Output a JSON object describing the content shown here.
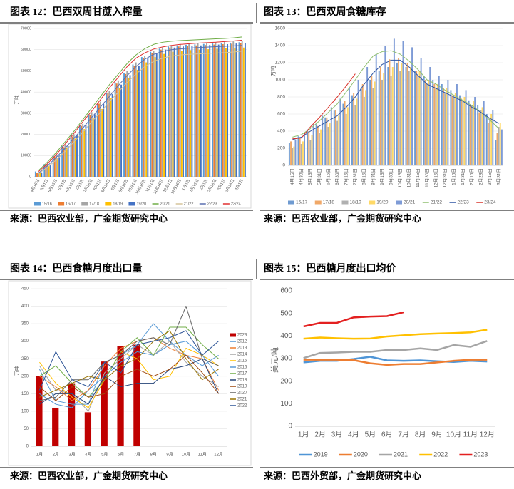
{
  "chart_data": [
    {
      "type": "bar",
      "title": "图表 12：巴西双周甘蔗入榨量",
      "source": "来源：巴西农业部，广金期货研究中心",
      "y_label": "万吨",
      "categories": [
        "4月16日",
        "5月1日",
        "5月16日",
        "6月1日",
        "6月16日",
        "7月1日",
        "7月16日",
        "8月1日",
        "8月16日",
        "9月1日",
        "9月16日",
        "10月1日",
        "10月16日",
        "11月1日",
        "11月16日",
        "12月1日",
        "12月16日",
        "1月1日",
        "1月16日",
        "2月1日",
        "2月16日",
        "3月1日",
        "3月16日",
        "4月1日"
      ],
      "ylim": [
        0,
        70000
      ],
      "yticks": [
        0,
        10000,
        20000,
        30000,
        40000,
        50000,
        60000,
        70000
      ],
      "grid": true,
      "legend": "bottom",
      "series": [
        {
          "name": "15/16",
          "kind": "bar",
          "color": "#5b9bd5",
          "values": [
            2500,
            6000,
            10000,
            14500,
            19500,
            24500,
            29500,
            34500,
            39500,
            44500,
            49000,
            53000,
            56500,
            59000,
            60500,
            61500,
            62000,
            62300,
            62500,
            62700,
            62900,
            63100,
            63300,
            63500
          ]
        },
        {
          "name": "16/17",
          "kind": "bar",
          "color": "#ed7d31",
          "values": [
            2000,
            5500,
            9500,
            14000,
            19000,
            24000,
            29000,
            34500,
            39500,
            44000,
            48500,
            52500,
            56000,
            58500,
            60000,
            61000,
            61500,
            61800,
            62000,
            62200,
            62400,
            62600,
            62800,
            63000
          ]
        },
        {
          "name": "17/18",
          "kind": "bar",
          "color": "#a5a5a5",
          "values": [
            2200,
            6200,
            10500,
            15000,
            20000,
            25000,
            30500,
            35500,
            40500,
            45500,
            50000,
            54000,
            57000,
            59500,
            61000,
            62000,
            62500,
            62800,
            63000,
            63200,
            63400,
            63600,
            63900,
            64200
          ]
        },
        {
          "name": "18/19",
          "kind": "bar",
          "color": "#ffc000",
          "values": [
            1800,
            5000,
            9000,
            13500,
            18000,
            22500,
            27500,
            32000,
            37000,
            42000,
            46500,
            50500,
            54000,
            56500,
            58000,
            59000,
            59500,
            59800,
            60000,
            60200,
            60400,
            60600,
            60800,
            61000
          ]
        },
        {
          "name": "19/20",
          "kind": "bar",
          "color": "#4472c4",
          "values": [
            2100,
            5800,
            10000,
            14500,
            19500,
            24500,
            29500,
            34500,
            39000,
            43500,
            48000,
            52500,
            56000,
            58500,
            60000,
            61000,
            61500,
            61800,
            62000,
            62200,
            62400,
            62600,
            62900,
            63200
          ]
        },
        {
          "name": "20/21",
          "kind": "line",
          "color": "#70ad47",
          "values": [
            3000,
            7000,
            11500,
            16500,
            21500,
            27000,
            32500,
            38000,
            43500,
            48500,
            53500,
            57500,
            60500,
            62500,
            63500,
            64000,
            64300,
            64500,
            64700,
            64900,
            65100,
            65300,
            65600,
            66000
          ]
        },
        {
          "name": "21/22",
          "kind": "line",
          "color": "#d6c49a",
          "values": [
            1500,
            4500,
            8000,
            12000,
            16500,
            21000,
            26000,
            30500,
            35500,
            40000,
            44500,
            48500,
            52000,
            54500,
            56000,
            57000,
            57500,
            57800,
            58000,
            58200,
            58400,
            58600,
            58900,
            59300
          ]
        },
        {
          "name": "22/23",
          "kind": "line",
          "color": "#5a6fb0",
          "values": [
            1800,
            5200,
            9200,
            13500,
            18200,
            23000,
            28000,
            33000,
            38000,
            43000,
            47800,
            52000,
            55500,
            57800,
            59200,
            60000,
            60400,
            60700,
            61000,
            61200,
            61400,
            61600,
            61800,
            62000
          ]
        },
        {
          "name": "23/24",
          "kind": "line",
          "color": "#e03030",
          "values": [
            2500,
            6200,
            10500,
            15500,
            20500,
            26000,
            31000,
            36500,
            42000,
            47000,
            52000,
            56000,
            58500,
            60300,
            61300,
            62000,
            62500,
            62800,
            63100,
            63300,
            63500,
            63800,
            64100,
            64500
          ]
        }
      ]
    },
    {
      "type": "bar",
      "title": "图表 13：巴西双周食糖库存",
      "source": "来源：巴西农业部，广金期货研究中心",
      "y_label": "万吨",
      "categories": [
        "4月15日",
        "4月30日",
        "5月15日",
        "5月31日",
        "6月15日",
        "6月30日",
        "7月15日",
        "7月31日",
        "8月15日",
        "8月31日",
        "9月15日",
        "9月30日",
        "10月15日",
        "10月31日",
        "11月15日",
        "11月30日",
        "12月15日",
        "12月31日",
        "1月15日",
        "1月31日",
        "2月15日",
        "2月28日",
        "3月15日",
        "3月31日"
      ],
      "ylim": [
        0,
        1600
      ],
      "yticks": [
        0,
        200,
        400,
        600,
        800,
        1000,
        1200,
        1400,
        1600
      ],
      "grid": true,
      "legend": "bottom",
      "series": [
        {
          "name": "16/17",
          "kind": "bar",
          "color": "#6f9bd1",
          "values": [
            260,
            340,
            420,
            480,
            560,
            640,
            720,
            820,
            900,
            1000,
            1100,
            1150,
            1200,
            1150,
            1100,
            1050,
            1000,
            950,
            880,
            820,
            760,
            700,
            600,
            300
          ]
        },
        {
          "name": "17/18",
          "kind": "bar",
          "color": "#f0a868",
          "values": [
            280,
            330,
            400,
            460,
            560,
            650,
            750,
            850,
            950,
            1050,
            1150,
            1240,
            1250,
            1200,
            1100,
            1000,
            950,
            900,
            820,
            780,
            700,
            620,
            500,
            380
          ]
        },
        {
          "name": "18/19",
          "kind": "bar",
          "color": "#b0b0b0",
          "values": [
            200,
            250,
            300,
            380,
            450,
            520,
            600,
            700,
            800,
            900,
            1000,
            1050,
            1100,
            1100,
            1050,
            950,
            900,
            850,
            800,
            750,
            700,
            650,
            550,
            450
          ]
        },
        {
          "name": "19/20",
          "kind": "bar",
          "color": "#ffd966",
          "values": [
            220,
            280,
            350,
            420,
            500,
            580,
            680,
            780,
            880,
            980,
            1080,
            1150,
            1200,
            1150,
            1100,
            1000,
            950,
            900,
            850,
            800,
            750,
            680,
            600,
            500
          ]
        },
        {
          "name": "20/21",
          "kind": "bar",
          "color": "#7e9bd6",
          "values": [
            300,
            380,
            480,
            580,
            680,
            780,
            900,
            1000,
            1150,
            1300,
            1400,
            1480,
            1450,
            1380,
            1250,
            1150,
            1050,
            1000,
            950,
            880,
            800,
            750,
            650,
            420
          ]
        },
        {
          "name": "21/22",
          "kind": "line",
          "color": "#8fbf6f",
          "values": [
            330,
            360,
            430,
            520,
            620,
            720,
            860,
            1000,
            1150,
            1280,
            1330,
            1340,
            1300,
            1220,
            1120,
            1000,
            950,
            880,
            820,
            760,
            700,
            620,
            530,
            430
          ]
        },
        {
          "name": "22/23",
          "kind": "line",
          "color": "#2f55a4",
          "values": [
            300,
            330,
            400,
            460,
            520,
            580,
            680,
            800,
            950,
            1080,
            1180,
            1230,
            1230,
            1150,
            1050,
            950,
            900,
            850,
            800,
            750,
            680,
            620,
            550,
            490
          ]
        },
        {
          "name": "23/24",
          "kind": "line",
          "color": "#d9342b",
          "values": [
            310,
            320,
            450,
            560,
            680,
            800,
            930,
            1070,
            null,
            null,
            null,
            null,
            null,
            null,
            null,
            null,
            null,
            null,
            null,
            null,
            null,
            null,
            null,
            null
          ]
        }
      ]
    },
    {
      "type": "bar",
      "title": "图表 14：巴西食糖月度出口量",
      "source": "来源：巴西农业部，广金期货研究中心",
      "y_label": "万吨",
      "categories": [
        "1月",
        "2月",
        "3月",
        "4月",
        "5月",
        "6月",
        "7月",
        "8月",
        "9月",
        "10月",
        "11月",
        "12月"
      ],
      "ylim": [
        0,
        450
      ],
      "yticks": [
        0,
        50,
        100,
        150,
        200,
        250,
        300,
        350,
        400,
        450
      ],
      "grid": true,
      "legend": "right",
      "series": [
        {
          "name": "2023",
          "kind": "bar",
          "color": "#c00000",
          "values": [
            200,
            110,
            180,
            97,
            242,
            287,
            290,
            null,
            null,
            null,
            null,
            null
          ]
        },
        {
          "name": "2012",
          "kind": "line",
          "color": "#4f95d6",
          "values": [
            150,
            120,
            110,
            160,
            200,
            240,
            270,
            260,
            290,
            300,
            260,
            200
          ]
        },
        {
          "name": "2013",
          "kind": "line",
          "color": "#ed7d31",
          "values": [
            200,
            170,
            130,
            160,
            230,
            280,
            300,
            310,
            280,
            260,
            250,
            160
          ]
        },
        {
          "name": "2014",
          "kind": "line",
          "color": "#a5a5a5",
          "values": [
            230,
            160,
            150,
            100,
            210,
            250,
            290,
            260,
            300,
            240,
            200,
            170
          ]
        },
        {
          "name": "2015",
          "kind": "line",
          "color": "#ffc000",
          "values": [
            240,
            180,
            140,
            110,
            190,
            270,
            250,
            190,
            200,
            280,
            260,
            230
          ]
        },
        {
          "name": "2016",
          "kind": "line",
          "color": "#5b9bd5",
          "values": [
            220,
            130,
            120,
            120,
            240,
            260,
            290,
            350,
            300,
            260,
            230,
            260
          ]
        },
        {
          "name": "2017",
          "kind": "line",
          "color": "#70ad47",
          "values": [
            200,
            230,
            180,
            140,
            190,
            270,
            310,
            260,
            340,
            340,
            290,
            250
          ]
        },
        {
          "name": "2018",
          "kind": "line",
          "color": "#264478",
          "values": [
            120,
            150,
            150,
            120,
            200,
            170,
            180,
            180,
            220,
            230,
            250,
            150
          ]
        },
        {
          "name": "2019",
          "kind": "line",
          "color": "#9e480e",
          "values": [
            170,
            130,
            170,
            140,
            150,
            200,
            220,
            200,
            220,
            260,
            210,
            150
          ]
        },
        {
          "name": "2020",
          "kind": "line",
          "color": "#636363",
          "values": [
            130,
            140,
            190,
            190,
            240,
            260,
            300,
            310,
            290,
            400,
            250,
            230
          ]
        },
        {
          "name": "2021",
          "kind": "line",
          "color": "#997300",
          "values": [
            140,
            160,
            180,
            200,
            190,
            230,
            250,
            300,
            330,
            250,
            190,
            220
          ]
        },
        {
          "name": "2022",
          "kind": "line",
          "color": "#2e5597",
          "values": [
            160,
            270,
            190,
            170,
            240,
            210,
            290,
            300,
            310,
            330,
            260,
            300
          ]
        }
      ]
    },
    {
      "type": "line",
      "title": "图表 15：巴西糖月度出口均价",
      "source": "来源：巴西外贸部，广金期货研究中心",
      "y_label": "美元/吨",
      "categories": [
        "1月",
        "2月",
        "3月",
        "4月",
        "5月",
        "6月",
        "7月",
        "8月",
        "9月",
        "10月",
        "11月",
        "12月"
      ],
      "ylim": [
        0,
        600
      ],
      "yticks": [
        0,
        100,
        200,
        300,
        400,
        500,
        600
      ],
      "grid": false,
      "legend": "bottom",
      "series": [
        {
          "name": "2019",
          "color": "#4f95d6",
          "values": [
            283,
            290,
            290,
            298,
            308,
            292,
            290,
            292,
            288,
            285,
            290,
            287
          ]
        },
        {
          "name": "2020",
          "color": "#ed7d31",
          "values": [
            295,
            295,
            295,
            293,
            279,
            272,
            276,
            276,
            283,
            290,
            295,
            295
          ]
        },
        {
          "name": "2021",
          "color": "#a5a5a5",
          "values": [
            302,
            325,
            327,
            330,
            330,
            338,
            338,
            345,
            338,
            360,
            352,
            378
          ]
        },
        {
          "name": "2022",
          "color": "#ffc000",
          "values": [
            388,
            393,
            390,
            388,
            389,
            398,
            403,
            408,
            411,
            413,
            416,
            428
          ]
        },
        {
          "name": "2023",
          "color": "#e32020",
          "values": [
            442,
            458,
            458,
            482,
            486,
            488,
            505,
            null,
            null,
            null,
            null,
            null
          ]
        }
      ]
    }
  ]
}
